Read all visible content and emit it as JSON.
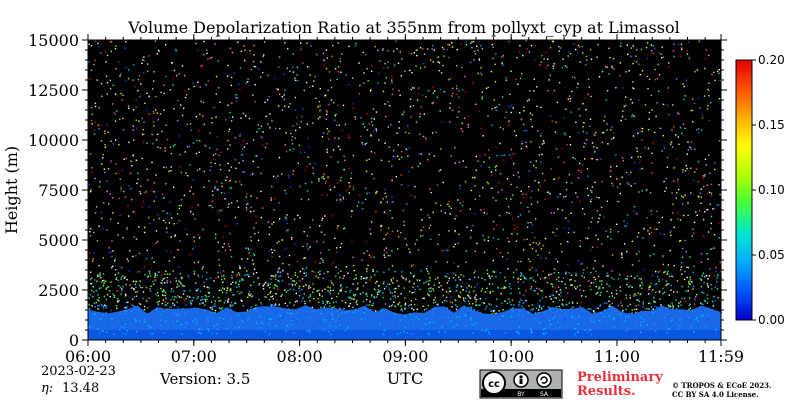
{
  "chart_data": {
    "type": "heatmap",
    "title": "Volume Depolarization Ratio at 355nm from pollyxt_cyp at Limassol",
    "xlabel": "UTC",
    "ylabel": "Height (m)",
    "x_ticks": [
      "06:00",
      "07:00",
      "08:00",
      "09:00",
      "10:00",
      "11:00",
      "11:59"
    ],
    "y_ticks": [
      "0",
      "2500",
      "5000",
      "7500",
      "10000",
      "12500",
      "15000"
    ],
    "xlim": [
      "06:00",
      "11:59"
    ],
    "ylim": [
      0,
      15000
    ],
    "colorbar": {
      "ticks": [
        "0.00",
        "0.05",
        "0.10",
        "0.15",
        "0.20"
      ],
      "range": [
        0,
        0.2
      ],
      "colors": [
        "#0000c8",
        "#0055ff",
        "#00aaff",
        "#00e5d0",
        "#40ff40",
        "#b0ff00",
        "#ffff00",
        "#ffb000",
        "#ff5000",
        "#e00000"
      ]
    },
    "near_surface_layer": {
      "value": 0.02,
      "top_height": 1500
    },
    "noise_region": {
      "from_height": 2000,
      "to_height": 15000,
      "background": "#000000"
    },
    "grid": false
  },
  "footer": {
    "date": "2023-02-23",
    "eta_label": "η:",
    "eta_value": "13.48",
    "version": "Version: 3.5",
    "preliminary_line1": "Preliminary",
    "preliminary_line2": "Results.",
    "copyright_line1": "© TROPOS & ECoE 2023.",
    "copyright_line2": "CC BY SA 4.0 License.",
    "license_badge": {
      "icon": "creative-commons-by-sa",
      "by_label": "BY",
      "sa_label": "SA"
    },
    "preliminary_color": "#e8303a"
  }
}
